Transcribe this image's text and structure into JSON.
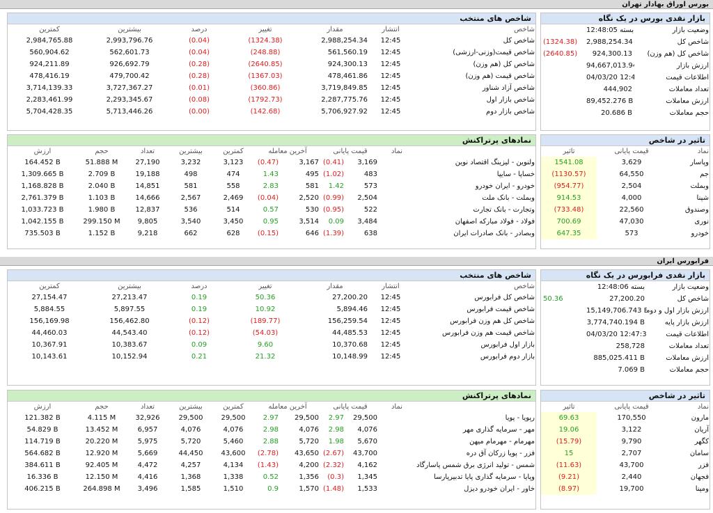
{
  "bourse": {
    "section_title": "بورس اوراق بهادار تهران",
    "market": {
      "title": "بازار نقدی بورس در یک نگاه",
      "rows": [
        {
          "label": "وضعیت بازار",
          "value": "بسته 12:48:05",
          "change": ""
        },
        {
          "label": "شاخص کل",
          "value": "2,988,254.34",
          "change": "(1324.38)"
        },
        {
          "label": "شاخص کل (هم وزن)",
          "value": "924,300.13",
          "change": "(2640.85)"
        },
        {
          "label": "ارزش بازار",
          "value": "94,667,013.944 B",
          "change": ""
        },
        {
          "label": "اطلاعات قیمت",
          "value": "04/03/20 12:47:42",
          "change": ""
        },
        {
          "label": "تعداد معاملات",
          "value": "444,902",
          "change": ""
        },
        {
          "label": "ارزش معاملات",
          "value": "89,452.276 B",
          "change": ""
        },
        {
          "label": "حجم معاملات",
          "value": "20.686 B",
          "change": ""
        }
      ]
    },
    "indices": {
      "title": "شاخص های منتخب",
      "headers": [
        "شاخص",
        "انتشار",
        "مقدار",
        "تغییر",
        "درصد",
        "بیشترین",
        "کمترین"
      ],
      "rows": [
        {
          "name": "شاخص کل",
          "time": "12:45",
          "value": "2,988,254.34",
          "change": "(1324.38)",
          "percent": "(0.04)",
          "high": "2,993,796.76",
          "low": "2,984,765.88"
        },
        {
          "name": "شاخص قیمت(وزنی-ارزشی)",
          "time": "12:45",
          "value": "561,560.19",
          "change": "(248.88)",
          "percent": "(0.04)",
          "high": "562,601.73",
          "low": "560,904.62"
        },
        {
          "name": "شاخص کل (هم وزن)",
          "time": "12:45",
          "value": "924,300.13",
          "change": "(2640.85)",
          "percent": "(0.28)",
          "high": "926,692.79",
          "low": "924,211.89"
        },
        {
          "name": "شاخص قیمت (هم وزن)",
          "time": "12:45",
          "value": "478,461.86",
          "change": "(1367.03)",
          "percent": "(0.28)",
          "high": "479,700.42",
          "low": "478,416.19"
        },
        {
          "name": "شاخص آزاد شناور",
          "time": "12:45",
          "value": "3,719,849.85",
          "change": "(360.86)",
          "percent": "(0.01)",
          "high": "3,727,367.27",
          "low": "3,714,139.33"
        },
        {
          "name": "شاخص بازار اول",
          "time": "12:45",
          "value": "2,287,775.76",
          "change": "(1792.73)",
          "percent": "(0.08)",
          "high": "2,293,345.67",
          "low": "2,283,461.99"
        },
        {
          "name": "شاخص بازار دوم",
          "time": "12:45",
          "value": "5,706,927.92",
          "change": "(142.68)",
          "percent": "(0.00)",
          "high": "5,713,446.26",
          "low": "5,704,428.35"
        }
      ]
    },
    "impact": {
      "title": "تاثیر در شاخص",
      "headers": [
        "نماد",
        "قیمت پایانی",
        "تاثیر"
      ],
      "rows": [
        {
          "symbol": "وپاسار",
          "price": "3,629",
          "impact": "1541.08"
        },
        {
          "symbol": "جم",
          "price": "64,550",
          "impact": "(1130.57)"
        },
        {
          "symbol": "وبملت",
          "price": "2,504",
          "impact": "(954.77)"
        },
        {
          "symbol": "شپنا",
          "price": "4,000",
          "impact": "914.53"
        },
        {
          "symbol": "وصندوق",
          "price": "22,560",
          "impact": "(733.48)"
        },
        {
          "symbol": "نوری",
          "price": "47,030",
          "impact": "700.69"
        },
        {
          "symbol": "خودرو",
          "price": "573",
          "impact": "647.35"
        }
      ]
    },
    "active": {
      "title": "نمادهای پرتراکنش",
      "headers": [
        "نماد",
        "قیمت پایانی",
        "آخرین معامله",
        "کمترین",
        "بیشترین",
        "تعداد",
        "حجم",
        "ارزش"
      ],
      "rows": [
        {
          "symbol": "ولنوین - لیزینگ اقتصاد نوین",
          "close": "3,169",
          "close_chg": "(0.41)",
          "last": "3,167",
          "last_chg": "(0.47)",
          "low": "3,123",
          "high": "3,232",
          "count": "27,190",
          "volume": "51.888 M",
          "value": "164.452 B"
        },
        {
          "symbol": "خساپا - سایپا",
          "close": "483",
          "close_chg": "(1.02)",
          "last": "495",
          "last_chg": "1.43",
          "low": "474",
          "high": "498",
          "count": "19,188",
          "volume": "2.709 B",
          "value": "1,309.665 B"
        },
        {
          "symbol": "خودرو - ایران خودرو",
          "close": "573",
          "close_chg": "1.42",
          "last": "581",
          "last_chg": "2.83",
          "low": "558",
          "high": "581",
          "count": "14,851",
          "volume": "2.040 B",
          "value": "1,168.828 B"
        },
        {
          "symbol": "وبملت - بانک ملت",
          "close": "2,504",
          "close_chg": "(0.99)",
          "last": "2,520",
          "last_chg": "(0.04)",
          "low": "2,469",
          "high": "2,567",
          "count": "14,666",
          "volume": "1.103 B",
          "value": "2,761.379 B"
        },
        {
          "symbol": "وتجارت - بانک تجارت",
          "close": "522",
          "close_chg": "(0.95)",
          "last": "530",
          "last_chg": "0.57",
          "low": "514",
          "high": "536",
          "count": "12,837",
          "volume": "1.980 B",
          "value": "1,033.723 B"
        },
        {
          "symbol": "فولاد - فولاد مبارکه اصفهان",
          "close": "3,484",
          "close_chg": "0.09",
          "last": "3,514",
          "last_chg": "0.95",
          "low": "3,450",
          "high": "3,540",
          "count": "9,805",
          "volume": "299.150 M",
          "value": "1,042.155 B"
        },
        {
          "symbol": "وبصادر - بانک صادرات ایران",
          "close": "638",
          "close_chg": "(1.39)",
          "last": "646",
          "last_chg": "(0.15)",
          "low": "628",
          "high": "662",
          "count": "9,218",
          "volume": "1.152 B",
          "value": "735.503 B"
        }
      ]
    }
  },
  "farabourse": {
    "section_title": "فرابورس ایران",
    "market": {
      "title": "بازار نقدی فرابورس در یک نگاه",
      "rows": [
        {
          "label": "وضعیت بازار",
          "value": "بسته 12:48:06",
          "change": ""
        },
        {
          "label": "شاخص کل",
          "value": "27,200.20",
          "change": "50.36"
        },
        {
          "label": "ارزش بازار اول و دوم",
          "value": "15,149,706.743 B",
          "change": ""
        },
        {
          "label": "ارزش بازار پایه",
          "value": "3,774,740.194 B",
          "change": ""
        },
        {
          "label": "اطلاعات قیمت",
          "value": "04/03/20 12:47:38",
          "change": ""
        },
        {
          "label": "تعداد معاملات",
          "value": "258,728",
          "change": ""
        },
        {
          "label": "ارزش معاملات",
          "value": "885,025.411 B",
          "change": ""
        },
        {
          "label": "حجم معاملات",
          "value": "7.069 B",
          "change": ""
        }
      ]
    },
    "indices": {
      "title": "شاخص های منتخب",
      "headers": [
        "شاخص",
        "انتشار",
        "مقدار",
        "تغییر",
        "درصد",
        "بیشترین",
        "کمترین"
      ],
      "rows": [
        {
          "name": "شاخص کل فرابورس",
          "time": "12:45",
          "value": "27,200.20",
          "change": "50.36",
          "percent": "0.19",
          "high": "27,213.47",
          "low": "27,154.47"
        },
        {
          "name": "شاخص قیمت فرابورس",
          "time": "12:45",
          "value": "5,894.46",
          "change": "10.92",
          "percent": "0.19",
          "high": "5,897.55",
          "low": "5,884.55"
        },
        {
          "name": "شاخص کل هم وزن فرابورس",
          "time": "12:45",
          "value": "156,259.54",
          "change": "(189.77)",
          "percent": "(0.12)",
          "high": "156,462.80",
          "low": "156,169.98"
        },
        {
          "name": "شاخص قیمت هم وزن فرابورس",
          "time": "12:45",
          "value": "44,485.53",
          "change": "(54.03)",
          "percent": "(0.12)",
          "high": "44,543.40",
          "low": "44,460.03"
        },
        {
          "name": "بازار اول فرابورس",
          "time": "12:45",
          "value": "10,370.68",
          "change": "9.60",
          "percent": "0.09",
          "high": "10,383.67",
          "low": "10,367.91"
        },
        {
          "name": "بازار دوم فرابورس",
          "time": "12:45",
          "value": "10,148.99",
          "change": "21.32",
          "percent": "0.21",
          "high": "10,152.94",
          "low": "10,143.61"
        }
      ]
    },
    "impact": {
      "title": "تاثیر در شاخص",
      "headers": [
        "نماد",
        "قیمت پایانی",
        "تاثیر"
      ],
      "rows": [
        {
          "symbol": "مارون",
          "price": "170,550",
          "impact": "69.63"
        },
        {
          "symbol": "آریان",
          "price": "3,122",
          "impact": "19.06"
        },
        {
          "symbol": "کگهر",
          "price": "9,790",
          "impact": "(15.79)"
        },
        {
          "symbol": "سامان",
          "price": "2,707",
          "impact": "15"
        },
        {
          "symbol": "فزر",
          "price": "43,700",
          "impact": "(11.63)"
        },
        {
          "symbol": "فجهان",
          "price": "2,440",
          "impact": "(9.21)"
        },
        {
          "symbol": "ومپنا",
          "price": "19,700",
          "impact": "(8.97)"
        }
      ]
    },
    "active": {
      "title": "نمادهای پرتراکنش",
      "headers": [
        "نماد",
        "قیمت پایانی",
        "آخرین معامله",
        "کمترین",
        "بیشترین",
        "تعداد",
        "حجم",
        "ارزش"
      ],
      "rows": [
        {
          "symbol": "رپویا - پویا",
          "close": "29,500",
          "close_chg": "2.97",
          "last": "29,500",
          "last_chg": "2.97",
          "low": "29,500",
          "high": "29,500",
          "count": "32,926",
          "volume": "4.115 M",
          "value": "121.382 B"
        },
        {
          "symbol": "مهر - سرمایه گذاری مهر",
          "close": "4,076",
          "close_chg": "2.98",
          "last": "4,076",
          "last_chg": "2.98",
          "low": "4,076",
          "high": "4,076",
          "count": "6,957",
          "volume": "13.452 M",
          "value": "54.829 B"
        },
        {
          "symbol": "مهرمام - مهرمام میهن",
          "close": "5,670",
          "close_chg": "1.98",
          "last": "5,720",
          "last_chg": "2.88",
          "low": "5,460",
          "high": "5,720",
          "count": "5,975",
          "volume": "20.220 M",
          "value": "114.719 B"
        },
        {
          "symbol": "فزر - پویا زرکان آق دره",
          "close": "43,700",
          "close_chg": "(2.67)",
          "last": "43,650",
          "last_chg": "(2.78)",
          "low": "43,600",
          "high": "44,450",
          "count": "5,669",
          "volume": "12.920 M",
          "value": "564.682 B"
        },
        {
          "symbol": "شمس - تولید انرژی برق شمس پاسارگاد",
          "close": "4,162",
          "close_chg": "(2.32)",
          "last": "4,200",
          "last_chg": "(1.43)",
          "low": "4,134",
          "high": "4,257",
          "count": "4,472",
          "volume": "92.405 M",
          "value": "384.611 B"
        },
        {
          "symbol": "وپایا - سرمایه گذاری پایا تدبیرپارسا",
          "close": "1,345",
          "close_chg": "(0.3)",
          "last": "1,356",
          "last_chg": "0.52",
          "low": "1,338",
          "high": "1,368",
          "count": "4,416",
          "volume": "12.150 M",
          "value": "16.336 B"
        },
        {
          "symbol": "خاور - ایران خودرو دیزل",
          "close": "1,533",
          "close_chg": "(1.48)",
          "last": "1,570",
          "last_chg": "0.9",
          "low": "1,510",
          "high": "1,585",
          "count": "3,496",
          "volume": "264.898 M",
          "value": "406.215 B"
        }
      ]
    }
  }
}
